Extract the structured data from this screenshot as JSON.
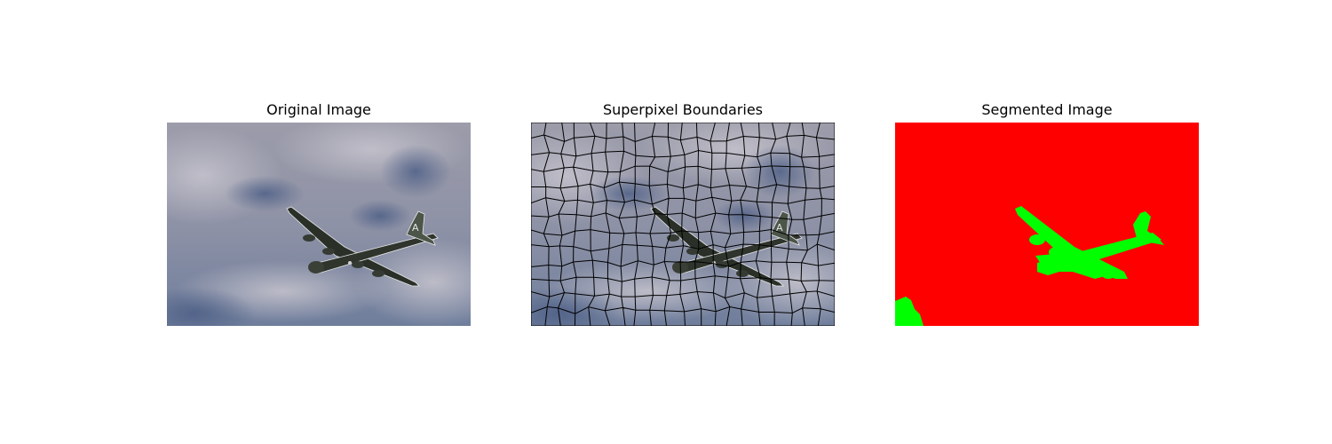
{
  "figure": {
    "panels": [
      {
        "title": "Original Image",
        "content": "photo of a four-engine propeller bomber flying under a cloudy sky"
      },
      {
        "title": "Superpixel Boundaries",
        "content": "same photo overlaid with black superpixel boundary grid"
      },
      {
        "title": "Segmented Image",
        "content": "two-class segmentation mask: red background, green aircraft and lower-left sky patch"
      }
    ],
    "colors": {
      "sky_light": "#a7a6b4",
      "sky_mid": "#8a8ea3",
      "sky_dark": "#5c6c8e",
      "aircraft": "#2a3028",
      "boundary": "#000000",
      "mask_background": "#ff0000",
      "mask_foreground": "#00ff00"
    }
  }
}
